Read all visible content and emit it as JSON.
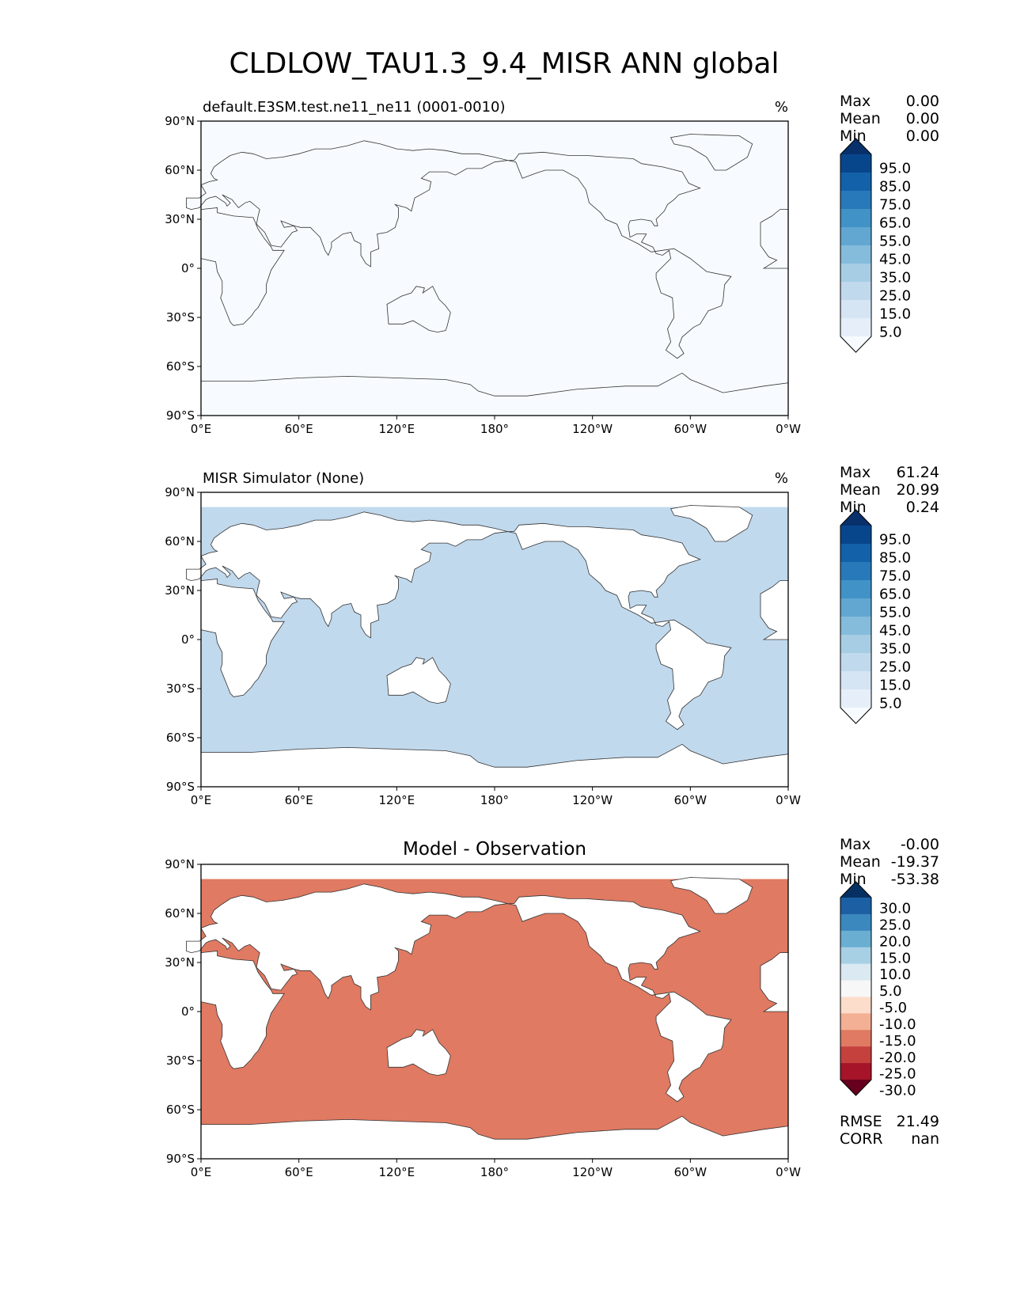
{
  "figure": {
    "title": "CLDLOW_TAU1.3_9.4_MISR ANN global"
  },
  "chart_data": [
    {
      "type": "map",
      "title": "default.E3SM.test.ne11_ne11 (0001-0010)",
      "units": "%",
      "stats": [
        {
          "label": "Max",
          "value": "0.00"
        },
        {
          "label": "Mean",
          "value": "0.00"
        },
        {
          "label": "Min",
          "value": "0.00"
        }
      ],
      "lat_ticks": [
        "90°N",
        "60°N",
        "30°N",
        "0°",
        "30°S",
        "60°S",
        "90°S"
      ],
      "lon_ticks": [
        "0°E",
        "60°E",
        "120°E",
        "180°",
        "120°W",
        "60°W",
        "0°W"
      ],
      "field_level": 0.0,
      "colorbar": {
        "labels": [
          "95.0",
          "85.0",
          "75.0",
          "65.0",
          "55.0",
          "45.0",
          "35.0",
          "25.0",
          "15.0",
          "5.0"
        ],
        "colors": [
          "#f7fbff",
          "#e6eff9",
          "#d5e5f4",
          "#c1d9ed",
          "#a6cde3",
          "#85bcdc",
          "#61a7d2",
          "#4192c6",
          "#2879b9",
          "#1361a9",
          "#08468b",
          "#08306b"
        ]
      }
    },
    {
      "type": "map",
      "title": "MISR Simulator (None)",
      "units": "%",
      "stats": [
        {
          "label": "Max",
          "value": "61.24"
        },
        {
          "label": "Mean",
          "value": "20.99"
        },
        {
          "label": "Min",
          "value": "0.24"
        }
      ],
      "lat_ticks": [
        "90°N",
        "60°N",
        "30°N",
        "0°",
        "30°S",
        "60°S",
        "90°S"
      ],
      "lon_ticks": [
        "0°E",
        "60°E",
        "120°E",
        "180°",
        "120°W",
        "60°W",
        "0°W"
      ],
      "field_level": 25.0,
      "colorbar": {
        "labels": [
          "95.0",
          "85.0",
          "75.0",
          "65.0",
          "55.0",
          "45.0",
          "35.0",
          "25.0",
          "15.0",
          "5.0"
        ],
        "colors": [
          "#f7fbff",
          "#e6eff9",
          "#d5e5f4",
          "#c1d9ed",
          "#a6cde3",
          "#85bcdc",
          "#61a7d2",
          "#4192c6",
          "#2879b9",
          "#1361a9",
          "#08468b",
          "#08306b"
        ]
      }
    },
    {
      "type": "map",
      "title": "Model - Observation",
      "stats": [
        {
          "label": "Max",
          "value": "-0.00"
        },
        {
          "label": "Mean",
          "value": "-19.37"
        },
        {
          "label": "Min",
          "value": "-53.38"
        }
      ],
      "lat_ticks": [
        "90°N",
        "60°N",
        "30°N",
        "0°",
        "30°S",
        "60°S",
        "90°S"
      ],
      "lon_ticks": [
        "0°E",
        "60°E",
        "120°E",
        "180°",
        "120°W",
        "60°W",
        "0°W"
      ],
      "field_level": -20.0,
      "colorbar": {
        "labels": [
          "30.0",
          "25.0",
          "20.0",
          "15.0",
          "10.0",
          "5.0",
          "-5.0",
          "-10.0",
          "-15.0",
          "-20.0",
          "-25.0",
          "-30.0"
        ],
        "colors": [
          "#67001f",
          "#a51429",
          "#c5413e",
          "#e07a62",
          "#f4b094",
          "#fcdcca",
          "#f7f7f7",
          "#dae9f2",
          "#a8d0e4",
          "#6aaed2",
          "#3a88be",
          "#1c5fa3",
          "#053061"
        ]
      },
      "error_stats": [
        {
          "label": "RMSE",
          "value": "21.49"
        },
        {
          "label": "CORR",
          "value": "nan"
        }
      ]
    }
  ]
}
